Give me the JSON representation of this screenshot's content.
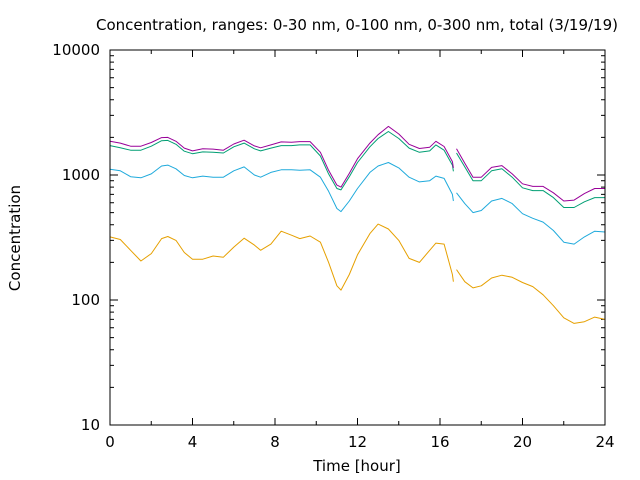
{
  "chart_data": {
    "type": "line",
    "title": "Concentration, ranges: 0-30 nm, 0-100 nm, 0-300 nm, total (3/19/19)",
    "xlabel": "Time [hour]",
    "ylabel": "Concentration",
    "xlim": [
      0,
      24
    ],
    "ylim": [
      10,
      10000
    ],
    "yscale": "log",
    "xticks": [
      "0",
      "4",
      "8",
      "12",
      "16",
      "20",
      "24"
    ],
    "yticks": [
      "10",
      "100",
      "1000",
      "10000"
    ],
    "grid": false,
    "legend": "none",
    "series": [
      {
        "color": "#e6a000",
        "segments": [
          [
            [
              0,
              320
            ],
            [
              0.5,
              305
            ],
            [
              1,
              250
            ],
            [
              1.5,
              205
            ],
            [
              2,
              235
            ],
            [
              2.5,
              310
            ],
            [
              2.8,
              322
            ],
            [
              3.2,
              300
            ],
            [
              3.6,
              240
            ],
            [
              4,
              212
            ],
            [
              4.5,
              212
            ],
            [
              5,
              225
            ],
            [
              5.5,
              220
            ],
            [
              6,
              265
            ],
            [
              6.5,
              312
            ],
            [
              7,
              275
            ],
            [
              7.3,
              250
            ],
            [
              7.8,
              280
            ],
            [
              8.3,
              355
            ],
            [
              8.8,
              330
            ],
            [
              9.2,
              310
            ],
            [
              9.7,
              325
            ],
            [
              10.2,
              290
            ],
            [
              10.6,
              200
            ],
            [
              11,
              130
            ],
            [
              11.2,
              120
            ],
            [
              11.6,
              160
            ],
            [
              12,
              230
            ],
            [
              12.6,
              340
            ],
            [
              13,
              405
            ],
            [
              13.5,
              370
            ],
            [
              14,
              300
            ],
            [
              14.5,
              215
            ],
            [
              15,
              200
            ],
            [
              15.5,
              250
            ],
            [
              15.8,
              285
            ],
            [
              16.2,
              280
            ],
            [
              16.6,
              160
            ],
            [
              16.65,
              140
            ]
          ],
          [
            [
              16.8,
              175
            ],
            [
              17.2,
              140
            ],
            [
              17.6,
              125
            ],
            [
              18,
              130
            ],
            [
              18.5,
              150
            ],
            [
              19,
              158
            ],
            [
              19.5,
              152
            ],
            [
              20,
              138
            ],
            [
              20.5,
              128
            ],
            [
              21,
              110
            ],
            [
              21.5,
              90
            ],
            [
              22,
              72
            ],
            [
              22.5,
              65
            ],
            [
              23,
              67
            ],
            [
              23.5,
              73
            ],
            [
              24,
              70
            ]
          ]
        ]
      },
      {
        "color": "#1faadc",
        "segments": [
          [
            [
              0,
              1110
            ],
            [
              0.5,
              1080
            ],
            [
              1,
              970
            ],
            [
              1.5,
              950
            ],
            [
              2,
              1020
            ],
            [
              2.5,
              1180
            ],
            [
              2.8,
              1200
            ],
            [
              3.2,
              1120
            ],
            [
              3.6,
              990
            ],
            [
              4,
              950
            ],
            [
              4.5,
              980
            ],
            [
              5,
              960
            ],
            [
              5.5,
              960
            ],
            [
              6,
              1080
            ],
            [
              6.5,
              1160
            ],
            [
              7,
              1000
            ],
            [
              7.3,
              960
            ],
            [
              7.8,
              1050
            ],
            [
              8.3,
              1100
            ],
            [
              8.8,
              1100
            ],
            [
              9.2,
              1090
            ],
            [
              9.7,
              1100
            ],
            [
              10.2,
              960
            ],
            [
              10.6,
              740
            ],
            [
              11,
              540
            ],
            [
              11.2,
              510
            ],
            [
              11.6,
              620
            ],
            [
              12,
              780
            ],
            [
              12.6,
              1050
            ],
            [
              13,
              1180
            ],
            [
              13.5,
              1260
            ],
            [
              14,
              1140
            ],
            [
              14.5,
              960
            ],
            [
              15,
              880
            ],
            [
              15.5,
              900
            ],
            [
              15.8,
              980
            ],
            [
              16.2,
              940
            ],
            [
              16.6,
              700
            ],
            [
              16.65,
              620
            ]
          ],
          [
            [
              16.8,
              720
            ],
            [
              17.2,
              590
            ],
            [
              17.6,
              500
            ],
            [
              18,
              520
            ],
            [
              18.5,
              620
            ],
            [
              19,
              650
            ],
            [
              19.5,
              590
            ],
            [
              20,
              490
            ],
            [
              20.5,
              450
            ],
            [
              21,
              420
            ],
            [
              21.5,
              360
            ],
            [
              22,
              290
            ],
            [
              22.5,
              280
            ],
            [
              23,
              320
            ],
            [
              23.5,
              355
            ],
            [
              24,
              350
            ]
          ]
        ]
      },
      {
        "color": "#009e73",
        "segments": [
          [
            [
              0,
              1720
            ],
            [
              0.5,
              1650
            ],
            [
              1,
              1580
            ],
            [
              1.5,
              1580
            ],
            [
              2,
              1700
            ],
            [
              2.5,
              1880
            ],
            [
              2.8,
              1890
            ],
            [
              3.2,
              1760
            ],
            [
              3.6,
              1550
            ],
            [
              4,
              1480
            ],
            [
              4.5,
              1530
            ],
            [
              5,
              1520
            ],
            [
              5.5,
              1500
            ],
            [
              6,
              1680
            ],
            [
              6.5,
              1800
            ],
            [
              7,
              1620
            ],
            [
              7.3,
              1560
            ],
            [
              7.8,
              1640
            ],
            [
              8.3,
              1720
            ],
            [
              8.8,
              1720
            ],
            [
              9.2,
              1740
            ],
            [
              9.7,
              1740
            ],
            [
              10.2,
              1420
            ],
            [
              10.6,
              1020
            ],
            [
              11,
              780
            ],
            [
              11.2,
              760
            ],
            [
              11.6,
              970
            ],
            [
              12,
              1260
            ],
            [
              12.6,
              1680
            ],
            [
              13,
              1960
            ],
            [
              13.5,
              2230
            ],
            [
              14,
              1960
            ],
            [
              14.5,
              1640
            ],
            [
              15,
              1520
            ],
            [
              15.5,
              1560
            ],
            [
              15.8,
              1740
            ],
            [
              16.2,
              1580
            ],
            [
              16.6,
              1200
            ],
            [
              16.65,
              1070
            ]
          ],
          [
            [
              16.8,
              1500
            ],
            [
              17.2,
              1160
            ],
            [
              17.6,
              900
            ],
            [
              18,
              900
            ],
            [
              18.5,
              1080
            ],
            [
              19,
              1120
            ],
            [
              19.5,
              960
            ],
            [
              20,
              790
            ],
            [
              20.5,
              750
            ],
            [
              21,
              750
            ],
            [
              21.5,
              660
            ],
            [
              22,
              550
            ],
            [
              22.5,
              550
            ],
            [
              23,
              610
            ],
            [
              23.5,
              660
            ],
            [
              24,
              660
            ]
          ]
        ]
      },
      {
        "color": "#990099",
        "segments": [
          [
            [
              0,
              1860
            ],
            [
              0.5,
              1800
            ],
            [
              1,
              1700
            ],
            [
              1.5,
              1700
            ],
            [
              2,
              1820
            ],
            [
              2.5,
              1990
            ],
            [
              2.8,
              2000
            ],
            [
              3.2,
              1860
            ],
            [
              3.6,
              1640
            ],
            [
              4,
              1560
            ],
            [
              4.5,
              1620
            ],
            [
              5,
              1610
            ],
            [
              5.5,
              1580
            ],
            [
              6,
              1770
            ],
            [
              6.5,
              1900
            ],
            [
              7,
              1710
            ],
            [
              7.3,
              1650
            ],
            [
              7.8,
              1740
            ],
            [
              8.3,
              1840
            ],
            [
              8.8,
              1830
            ],
            [
              9.2,
              1850
            ],
            [
              9.7,
              1850
            ],
            [
              10.2,
              1520
            ],
            [
              10.6,
              1090
            ],
            [
              11,
              830
            ],
            [
              11.2,
              800
            ],
            [
              11.6,
              1030
            ],
            [
              12,
              1350
            ],
            [
              12.6,
              1800
            ],
            [
              13,
              2100
            ],
            [
              13.5,
              2450
            ],
            [
              14,
              2130
            ],
            [
              14.5,
              1760
            ],
            [
              15,
              1630
            ],
            [
              15.5,
              1670
            ],
            [
              15.8,
              1860
            ],
            [
              16.2,
              1690
            ],
            [
              16.6,
              1280
            ],
            [
              16.65,
              1140
            ]
          ],
          [
            [
              16.8,
              1620
            ],
            [
              17.2,
              1240
            ],
            [
              17.6,
              960
            ],
            [
              18,
              960
            ],
            [
              18.5,
              1150
            ],
            [
              19,
              1190
            ],
            [
              19.5,
              1020
            ],
            [
              20,
              850
            ],
            [
              20.5,
              810
            ],
            [
              21,
              810
            ],
            [
              21.5,
              720
            ],
            [
              22,
              620
            ],
            [
              22.5,
              630
            ],
            [
              23,
              710
            ],
            [
              23.5,
              780
            ],
            [
              24,
              780
            ]
          ]
        ]
      }
    ]
  }
}
